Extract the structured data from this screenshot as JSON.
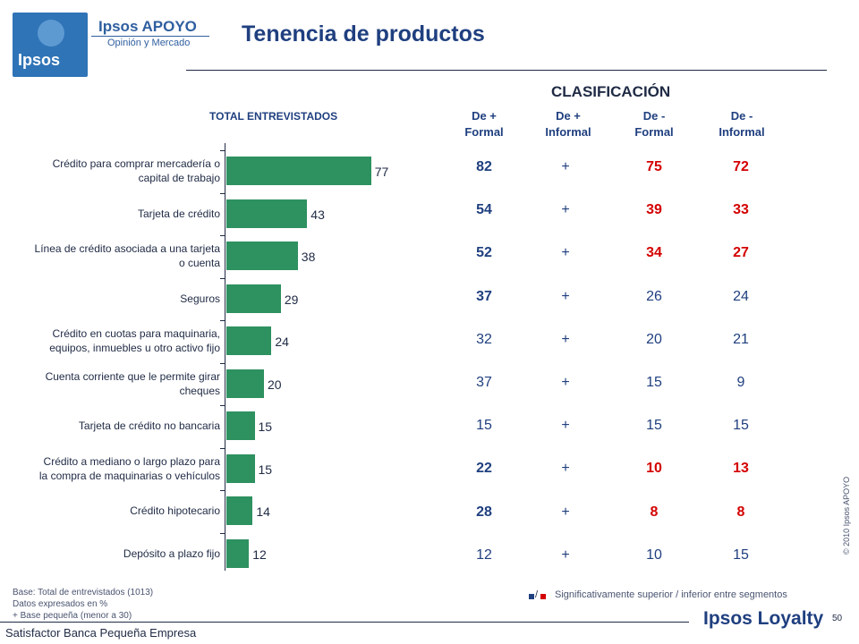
{
  "header": {
    "brand_name": "Ipsos APOYO",
    "brand_sub": "Opinión y Mercado",
    "logo_text": "Ipsos",
    "title": "Tenencia de productos"
  },
  "table_headers": {
    "clasificacion": "CLASIFICACIÓN",
    "total": "TOTAL ENTREVISTADOS",
    "segments": [
      {
        "line1": "De +",
        "line2": "Formal"
      },
      {
        "line1": "De +",
        "line2": "Informal"
      },
      {
        "line1": "De -",
        "line2": "Formal"
      },
      {
        "line1": "De  -",
        "line2": "Informal"
      }
    ]
  },
  "chart_data": {
    "type": "bar",
    "orientation": "horizontal",
    "title": "TOTAL ENTREVISTADOS",
    "xlim": [
      0,
      100
    ],
    "color": "#2e9160",
    "categories": [
      [
        "Crédito para comprar mercadería o",
        "capital de trabajo"
      ],
      [
        "Tarjeta de crédito"
      ],
      [
        "Línea de crédito asociada a una tarjeta",
        "o cuenta"
      ],
      [
        "Seguros"
      ],
      [
        "Crédito en cuotas para maquinaria,",
        "equipos, inmuebles u otro activo fijo"
      ],
      [
        "Cuenta corriente que le permite girar",
        "cheques"
      ],
      [
        "Tarjeta de crédito no bancaria"
      ],
      [
        "Crédito a mediano o largo plazo para",
        "la compra de maquinarias o vehículos"
      ],
      [
        "Crédito hipotecario"
      ],
      [
        "Depósito a plazo fijo"
      ]
    ],
    "values": [
      77,
      43,
      38,
      29,
      24,
      20,
      15,
      15,
      14,
      12
    ]
  },
  "segments_table": {
    "rows": [
      {
        "formal_plus": "82",
        "informal_plus": "+",
        "formal_minus": "75",
        "informal_minus": "72",
        "styles": [
          "blue",
          "",
          "red",
          "red"
        ]
      },
      {
        "formal_plus": "54",
        "informal_plus": "+",
        "formal_minus": "39",
        "informal_minus": "33",
        "styles": [
          "blue",
          "",
          "red",
          "red"
        ]
      },
      {
        "formal_plus": "52",
        "informal_plus": "+",
        "formal_minus": "34",
        "informal_minus": "27",
        "styles": [
          "blue",
          "",
          "red",
          "red"
        ]
      },
      {
        "formal_plus": "37",
        "informal_plus": "+",
        "formal_minus": "26",
        "informal_minus": "24",
        "styles": [
          "blue",
          "",
          "",
          ""
        ]
      },
      {
        "formal_plus": "32",
        "informal_plus": "+",
        "formal_minus": "20",
        "informal_minus": "21",
        "styles": [
          "",
          "",
          "",
          ""
        ]
      },
      {
        "formal_plus": "37",
        "informal_plus": "+",
        "formal_minus": "15",
        "informal_minus": "9",
        "styles": [
          "",
          "",
          "",
          ""
        ]
      },
      {
        "formal_plus": "15",
        "informal_plus": "+",
        "formal_minus": "15",
        "informal_minus": "15",
        "styles": [
          "",
          "",
          "",
          ""
        ]
      },
      {
        "formal_plus": "22",
        "informal_plus": "+",
        "formal_minus": "10",
        "informal_minus": "13",
        "styles": [
          "blue",
          "",
          "red",
          "red"
        ]
      },
      {
        "formal_plus": "28",
        "informal_plus": "+",
        "formal_minus": "8",
        "informal_minus": "8",
        "styles": [
          "blue",
          "",
          "red",
          "red"
        ]
      },
      {
        "formal_plus": "12",
        "informal_plus": "+",
        "formal_minus": "10",
        "informal_minus": "15",
        "styles": [
          "",
          "",
          "",
          ""
        ]
      }
    ]
  },
  "footer": {
    "base": "Base: Total de entrevistados (1013)",
    "datos": "Datos expresados en %",
    "plus_note": "+ Base pequeña (menor a 30)",
    "brand": "Satisfactor Banca Pequeña Empresa",
    "legend_slash": "/",
    "legend": "Significativamente superior / inferior entre segmentos",
    "loyalty": "Ipsos Loyalty",
    "page_number": "50",
    "copyright": "© 2010 Ipsos APOYO"
  },
  "colors": {
    "bar": "#2e9160",
    "significant_high": "#1f3f7f",
    "significant_low": "#d40000"
  }
}
